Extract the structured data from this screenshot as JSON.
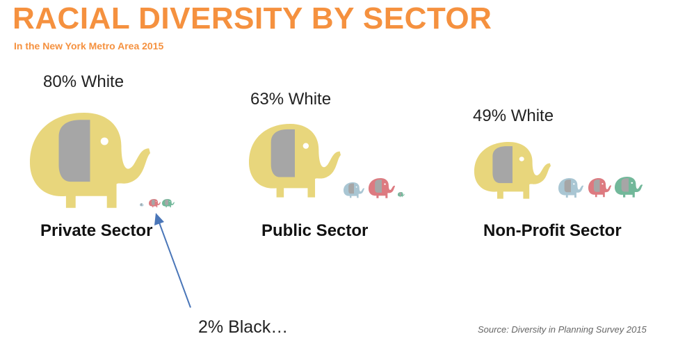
{
  "header": {
    "title": "RACIAL DIVERSITY BY SECTOR",
    "subtitle": "In the New York Metro Area 2015"
  },
  "sectors": [
    {
      "name": "Private Sector",
      "white_label": "80% White"
    },
    {
      "name": "Public Sector",
      "white_label": "63% White"
    },
    {
      "name": "Non-Profit Sector",
      "white_label": "49% White"
    }
  ],
  "annotation": {
    "text": "2% Black…"
  },
  "source": "Source: Diversity in Planning Survey 2015",
  "colors": {
    "accent": "#f5913f",
    "white_group": "#e8d67c",
    "blue_group": "#a9c6d3",
    "red_group": "#dd7a80",
    "green_group": "#72b89a",
    "arrow": "#4a76b8"
  }
}
